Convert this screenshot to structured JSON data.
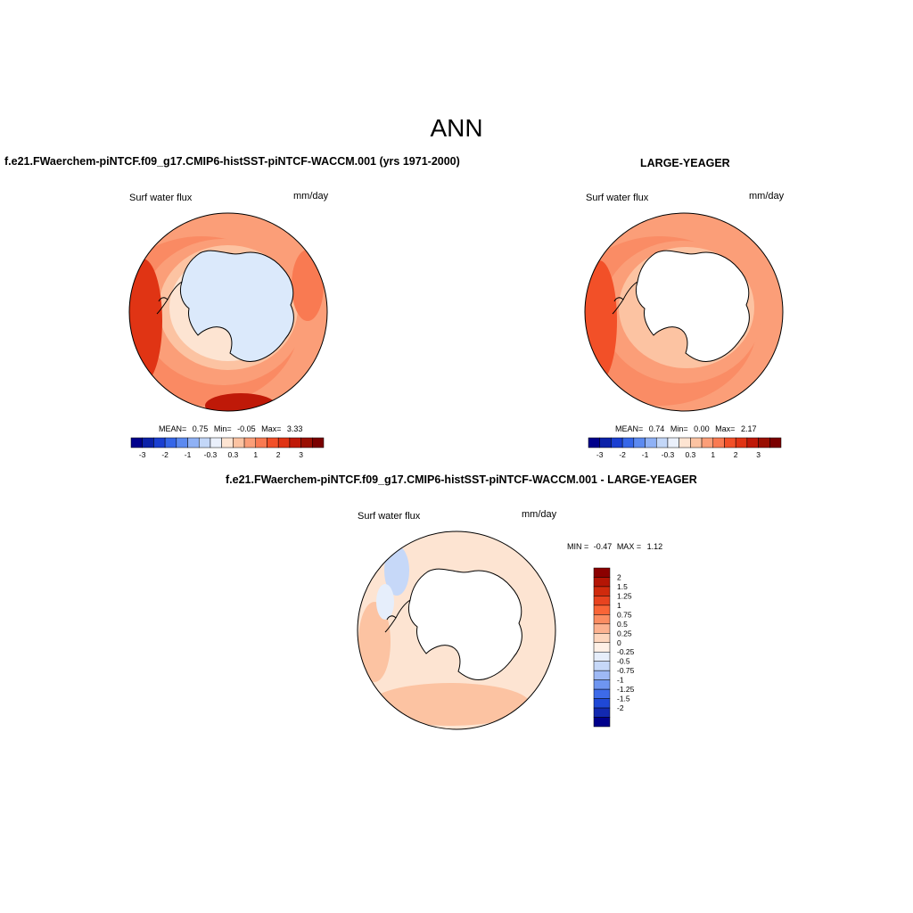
{
  "page_title": "ANN",
  "panels": {
    "left": {
      "title": "f.e21.FWaerchem-piNTCF.f09_g17.CMIP6-histSST-piNTCF-WACCM.001 (yrs 1971-2000)",
      "variable": "Surf water flux",
      "units": "mm/day",
      "stats": {
        "mean_label": "MEAN=",
        "mean": "0.75",
        "min_label": "Min=",
        "min": "-0.05",
        "max_label": "Max=",
        "max": "3.33"
      }
    },
    "right": {
      "title": "LARGE-YEAGER",
      "variable": "Surf water flux",
      "units": "mm/day",
      "stats": {
        "mean_label": "MEAN=",
        "mean": "0.74",
        "min_label": "Min=",
        "min": "0.00",
        "max_label": "Max=",
        "max": "2.17"
      }
    },
    "diff": {
      "title": "f.e21.FWaerchem-piNTCF.f09_g17.CMIP6-histSST-piNTCF-WACCM.001 - LARGE-YEAGER",
      "variable": "Surf water flux",
      "units": "mm/day",
      "minmax": {
        "min_label": "MIN =",
        "min": "-0.47",
        "max_label": "MAX =",
        "max": "1.12"
      }
    }
  },
  "colorbar_h": {
    "colors": [
      "#00008b",
      "#0b21a8",
      "#1a3fd1",
      "#3566e8",
      "#5c8af0",
      "#8fb1f5",
      "#c3d7f8",
      "#eaf0fb",
      "#fde4d2",
      "#fcc3a2",
      "#fb9e78",
      "#f97a52",
      "#f25028",
      "#e03414",
      "#bf1908",
      "#990f02",
      "#7a0000"
    ],
    "labels": [
      "-3",
      "-2",
      "-1",
      "-0.3",
      "0.3",
      "1",
      "2",
      "3"
    ]
  },
  "colorbar_v": {
    "colors": [
      "#8b0000",
      "#b41505",
      "#d02a0d",
      "#e8431f",
      "#f96537",
      "#fb8d62",
      "#fcb290",
      "#fdd6bd",
      "#fef0e6",
      "#e6eefb",
      "#c6d8f8",
      "#9eb9f5",
      "#6e95f0",
      "#3d6ae8",
      "#1f48d6",
      "#1229b0",
      "#00008b"
    ],
    "labels": [
      "2",
      "1.5",
      "1.25",
      "1",
      "0.75",
      "0.5",
      "0.25",
      "0",
      "-0.25",
      "-0.5",
      "-0.75",
      "-1",
      "-1.25",
      "-1.5",
      "-2"
    ]
  },
  "colors": {
    "coast": "#000000",
    "land": "#ffffff"
  }
}
